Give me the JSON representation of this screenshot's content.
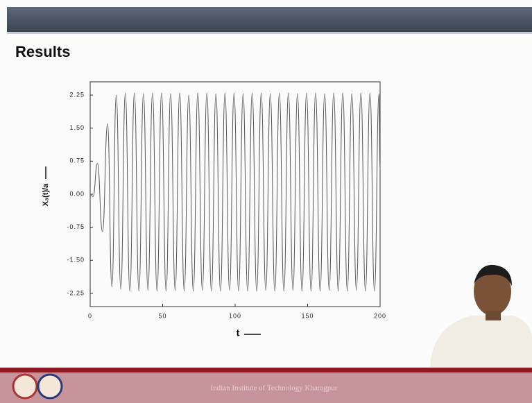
{
  "slide_title": "Results",
  "footer": "Indian Institute of Technology Kharagpur",
  "chart_data": {
    "type": "line",
    "x_label": "t",
    "y_label": "X₃(t)/a",
    "xlim": [
      0,
      200
    ],
    "ylim": [
      -2.55,
      2.55
    ],
    "xticks": [
      0,
      50,
      100,
      150,
      200
    ],
    "yticks": [
      {
        "value": 2.25,
        "label": "2.25"
      },
      {
        "value": 1.5,
        "label": "1.50"
      },
      {
        "value": 0.75,
        "label": "0.75"
      },
      {
        "value": 0,
        "label": "0.00"
      },
      {
        "value": -0.75,
        "label": "-0.75"
      },
      {
        "value": -1.5,
        "label": "-1.50"
      },
      {
        "value": -2.25,
        "label": "-2.25"
      }
    ],
    "color": "#555555",
    "x": [
      0,
      2,
      5,
      8.5,
      12,
      15,
      18,
      21.13,
      24.25,
      27.38,
      30.5,
      33.63,
      36.75,
      39.88,
      43,
      46.13,
      49.25,
      52.38,
      55.5,
      58.63,
      61.75,
      64.88,
      68,
      71.13,
      74.25,
      77.38,
      80.5,
      83.63,
      86.75,
      89.88,
      93,
      96.13,
      99.25,
      102.38,
      105.5,
      108.63,
      111.75,
      114.88,
      118,
      121.13,
      124.25,
      127.38,
      130.5,
      133.63,
      136.75,
      139.88,
      143,
      146.13,
      149.25,
      152.38,
      155.5,
      158.63,
      161.75,
      164.88,
      168,
      171.13,
      174.25,
      177.38,
      180.5,
      183.63,
      186.75,
      189.88,
      193,
      196.13,
      199.25,
      200
    ],
    "values": [
      0,
      -0.05,
      0.7,
      -0.85,
      1.6,
      -2.1,
      2.25,
      -2.15,
      2.3,
      -2.2,
      2.3,
      -2.2,
      2.28,
      -2.18,
      2.3,
      -2.2,
      2.3,
      -2.2,
      2.28,
      -2.18,
      2.3,
      -2.2,
      2.25,
      -2.2,
      2.3,
      -2.18,
      2.3,
      -2.2,
      2.28,
      -2.2,
      2.3,
      -2.18,
      2.3,
      -2.2,
      2.28,
      -2.2,
      2.3,
      -2.2,
      2.3,
      -2.18,
      2.28,
      -2.2,
      2.3,
      -2.2,
      2.3,
      -2.18,
      2.28,
      -2.2,
      2.3,
      -2.2,
      2.3,
      -2.2,
      2.28,
      -2.18,
      2.3,
      -2.2,
      2.3,
      -2.2,
      2.28,
      -2.18,
      2.3,
      -2.2,
      2.3,
      -2.2,
      2.28,
      0.55
    ]
  }
}
